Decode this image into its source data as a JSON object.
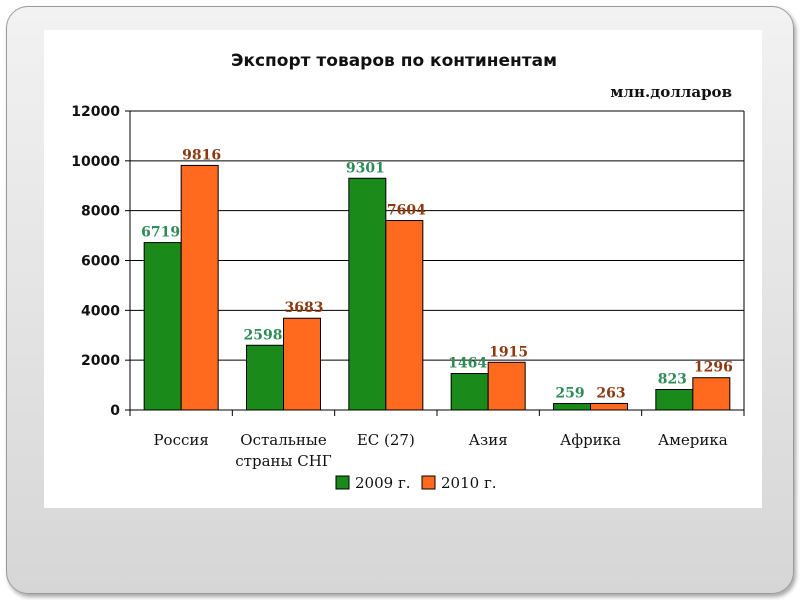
{
  "chart_data": {
    "type": "bar",
    "title": "Экспорт товаров по континентам",
    "unit_label": "млн.долларов",
    "categories": [
      [
        "Россия"
      ],
      [
        "Остальные",
        "страны СНГ"
      ],
      [
        "ЕС (27)"
      ],
      [
        "Азия"
      ],
      [
        "Африка"
      ],
      [
        "Америка"
      ]
    ],
    "series": [
      {
        "name": "2009 г.",
        "color": "#1a8a1a",
        "label_color": "#2e8b57",
        "values": [
          6719,
          2598,
          9301,
          1464,
          259,
          823
        ]
      },
      {
        "name": "2010 г.",
        "color": "#ff6a1f",
        "label_color": "#8b3a0f",
        "values": [
          9816,
          3683,
          7604,
          1915,
          263,
          1296
        ]
      }
    ],
    "ylim": [
      0,
      12000
    ],
    "yticks": [
      0,
      2000,
      4000,
      6000,
      8000,
      10000,
      12000
    ],
    "grid": true,
    "legend_position": "bottom"
  }
}
